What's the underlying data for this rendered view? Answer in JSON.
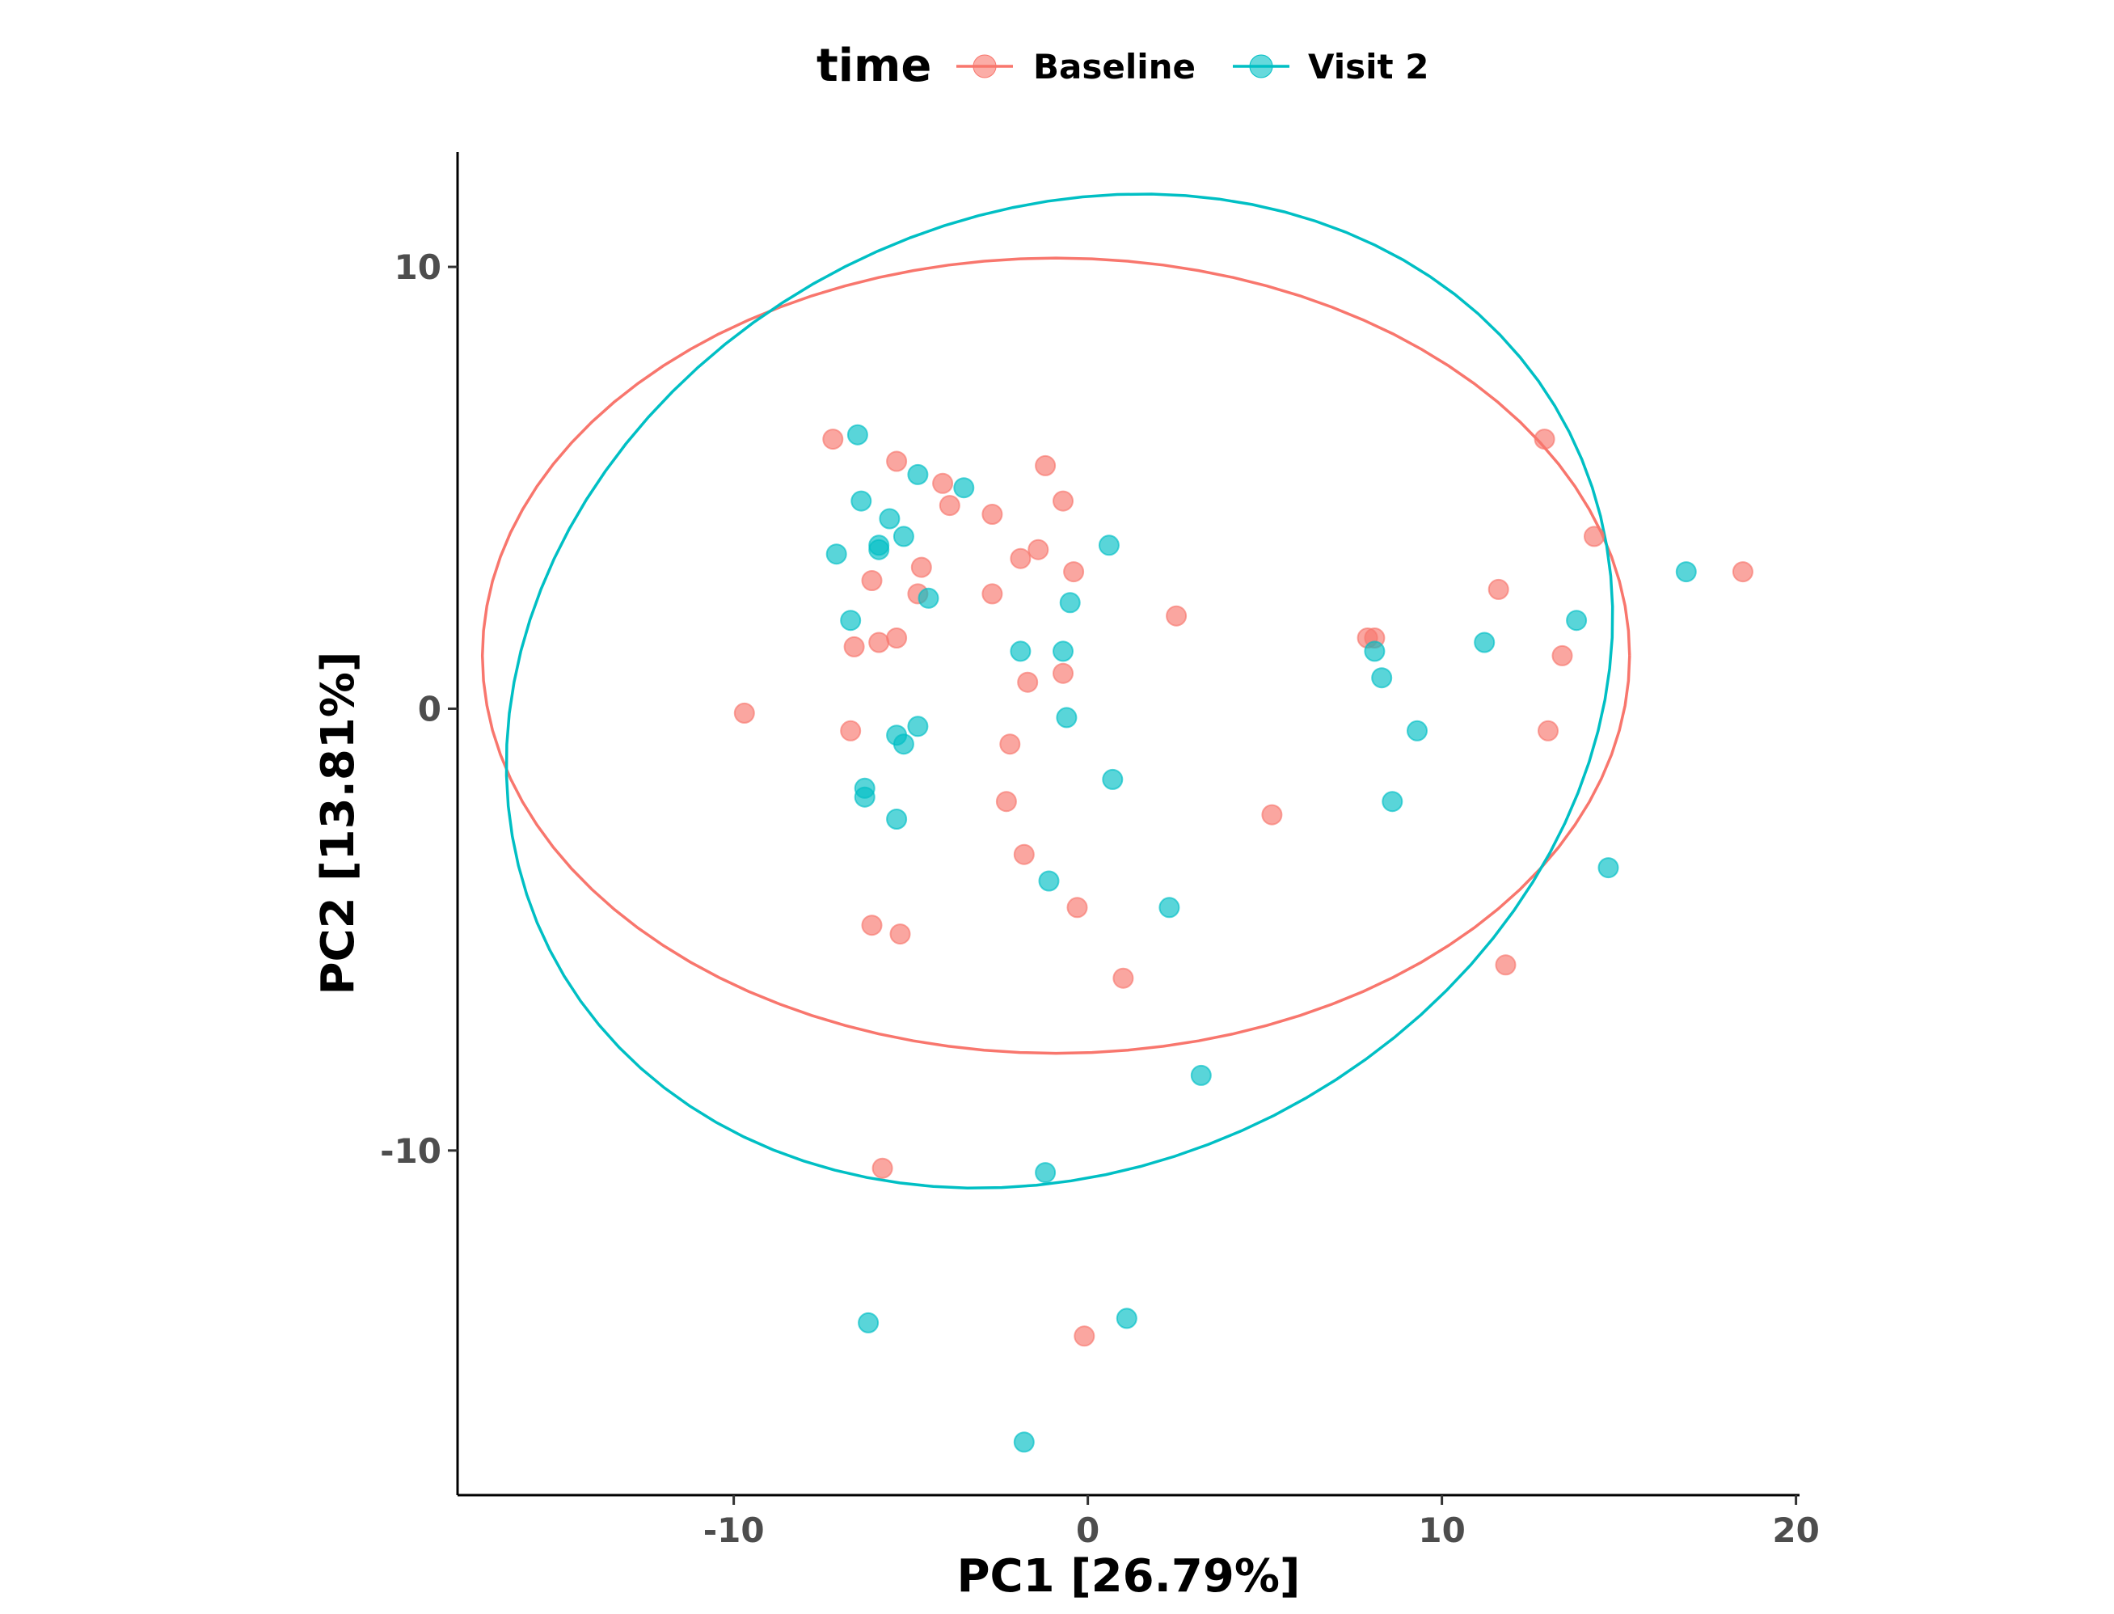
{
  "chart_data": {
    "type": "scatter",
    "xlabel": "PC1 [26.79%]",
    "ylabel": "PC2 [13.81%]",
    "xlim": [
      -17.8,
      20.1
    ],
    "ylim": [
      -17.8,
      12.6
    ],
    "x_ticks": [
      -10,
      0,
      10,
      20
    ],
    "y_ticks": [
      -10,
      0,
      10
    ],
    "grid": false,
    "legend": {
      "title": "time",
      "position": "top"
    },
    "series": [
      {
        "name": "Baseline",
        "color": "#F8766D",
        "points": [
          {
            "x": -7.2,
            "y": 6.1
          },
          {
            "x": -5.4,
            "y": 5.6
          },
          {
            "x": -4.1,
            "y": 5.1
          },
          {
            "x": -3.9,
            "y": 4.6
          },
          {
            "x": -2.7,
            "y": 4.4
          },
          {
            "x": -1.2,
            "y": 5.5
          },
          {
            "x": -0.7,
            "y": 4.7
          },
          {
            "x": -1.9,
            "y": 3.4
          },
          {
            "x": -1.4,
            "y": 3.6
          },
          {
            "x": -0.4,
            "y": 3.1
          },
          {
            "x": -4.7,
            "y": 3.2
          },
          {
            "x": -6.1,
            "y": 2.9
          },
          {
            "x": -4.8,
            "y": 2.6
          },
          {
            "x": -2.7,
            "y": 2.6
          },
          {
            "x": -5.9,
            "y": 1.5
          },
          {
            "x": -5.4,
            "y": 1.6
          },
          {
            "x": -6.6,
            "y": 1.4
          },
          {
            "x": 2.5,
            "y": 2.1
          },
          {
            "x": -1.7,
            "y": 0.6
          },
          {
            "x": -0.7,
            "y": 0.8
          },
          {
            "x": -9.7,
            "y": -0.1
          },
          {
            "x": -6.7,
            "y": -0.5
          },
          {
            "x": -2.2,
            "y": -0.8
          },
          {
            "x": -2.3,
            "y": -2.1
          },
          {
            "x": -1.8,
            "y": -3.3
          },
          {
            "x": -0.3,
            "y": -4.5
          },
          {
            "x": -6.1,
            "y": -4.9
          },
          {
            "x": -5.3,
            "y": -5.1
          },
          {
            "x": 1.0,
            "y": -6.1
          },
          {
            "x": 5.2,
            "y": -2.4
          },
          {
            "x": 7.9,
            "y": 1.6
          },
          {
            "x": 8.1,
            "y": 1.6
          },
          {
            "x": 11.6,
            "y": 2.7
          },
          {
            "x": 12.9,
            "y": 6.1
          },
          {
            "x": 14.3,
            "y": 3.9
          },
          {
            "x": 13.4,
            "y": 1.2
          },
          {
            "x": 13.0,
            "y": -0.5
          },
          {
            "x": 11.8,
            "y": -5.8
          },
          {
            "x": 18.5,
            "y": 3.1
          },
          {
            "x": -5.8,
            "y": -10.4
          },
          {
            "x": -0.1,
            "y": -14.2
          }
        ]
      },
      {
        "name": "Visit 2",
        "color": "#00BFC4",
        "points": [
          {
            "x": -6.5,
            "y": 6.2
          },
          {
            "x": -4.8,
            "y": 5.3
          },
          {
            "x": -3.5,
            "y": 5.0
          },
          {
            "x": -6.4,
            "y": 4.7
          },
          {
            "x": -5.6,
            "y": 4.3
          },
          {
            "x": -5.2,
            "y": 3.9
          },
          {
            "x": -5.9,
            "y": 3.7
          },
          {
            "x": -5.9,
            "y": 3.6
          },
          {
            "x": -7.1,
            "y": 3.5
          },
          {
            "x": 0.6,
            "y": 3.7
          },
          {
            "x": -4.5,
            "y": 2.5
          },
          {
            "x": -0.5,
            "y": 2.4
          },
          {
            "x": -6.7,
            "y": 2.0
          },
          {
            "x": -1.9,
            "y": 1.3
          },
          {
            "x": -0.7,
            "y": 1.3
          },
          {
            "x": -0.6,
            "y": -0.2
          },
          {
            "x": -4.8,
            "y": -0.4
          },
          {
            "x": -5.4,
            "y": -0.6
          },
          {
            "x": -5.2,
            "y": -0.8
          },
          {
            "x": -6.3,
            "y": -1.8
          },
          {
            "x": -6.3,
            "y": -2.0
          },
          {
            "x": -5.4,
            "y": -2.5
          },
          {
            "x": 0.7,
            "y": -1.6
          },
          {
            "x": -1.1,
            "y": -3.9
          },
          {
            "x": 2.3,
            "y": -4.5
          },
          {
            "x": 3.2,
            "y": -8.3
          },
          {
            "x": 8.1,
            "y": 1.3
          },
          {
            "x": 8.3,
            "y": 0.7
          },
          {
            "x": 9.3,
            "y": -0.5
          },
          {
            "x": 8.6,
            "y": -2.1
          },
          {
            "x": 11.2,
            "y": 1.5
          },
          {
            "x": 13.8,
            "y": 2.0
          },
          {
            "x": 14.7,
            "y": -3.6
          },
          {
            "x": 16.9,
            "y": 3.1
          },
          {
            "x": -1.2,
            "y": -10.5
          },
          {
            "x": -6.2,
            "y": -13.9
          },
          {
            "x": 1.1,
            "y": -13.8
          },
          {
            "x": -1.8,
            "y": -16.6
          }
        ]
      }
    ],
    "ellipses": [
      {
        "series": "Baseline",
        "cx": -0.9,
        "cy": 1.2,
        "rx": 16.2,
        "ry": 9.0,
        "angle_deg": 0,
        "color": "#F8766D"
      },
      {
        "series": "Visit 2",
        "cx": -0.8,
        "cy": 0.4,
        "rx": 15.8,
        "ry": 11.0,
        "angle_deg": 12,
        "color": "#00BFC4"
      }
    ]
  }
}
